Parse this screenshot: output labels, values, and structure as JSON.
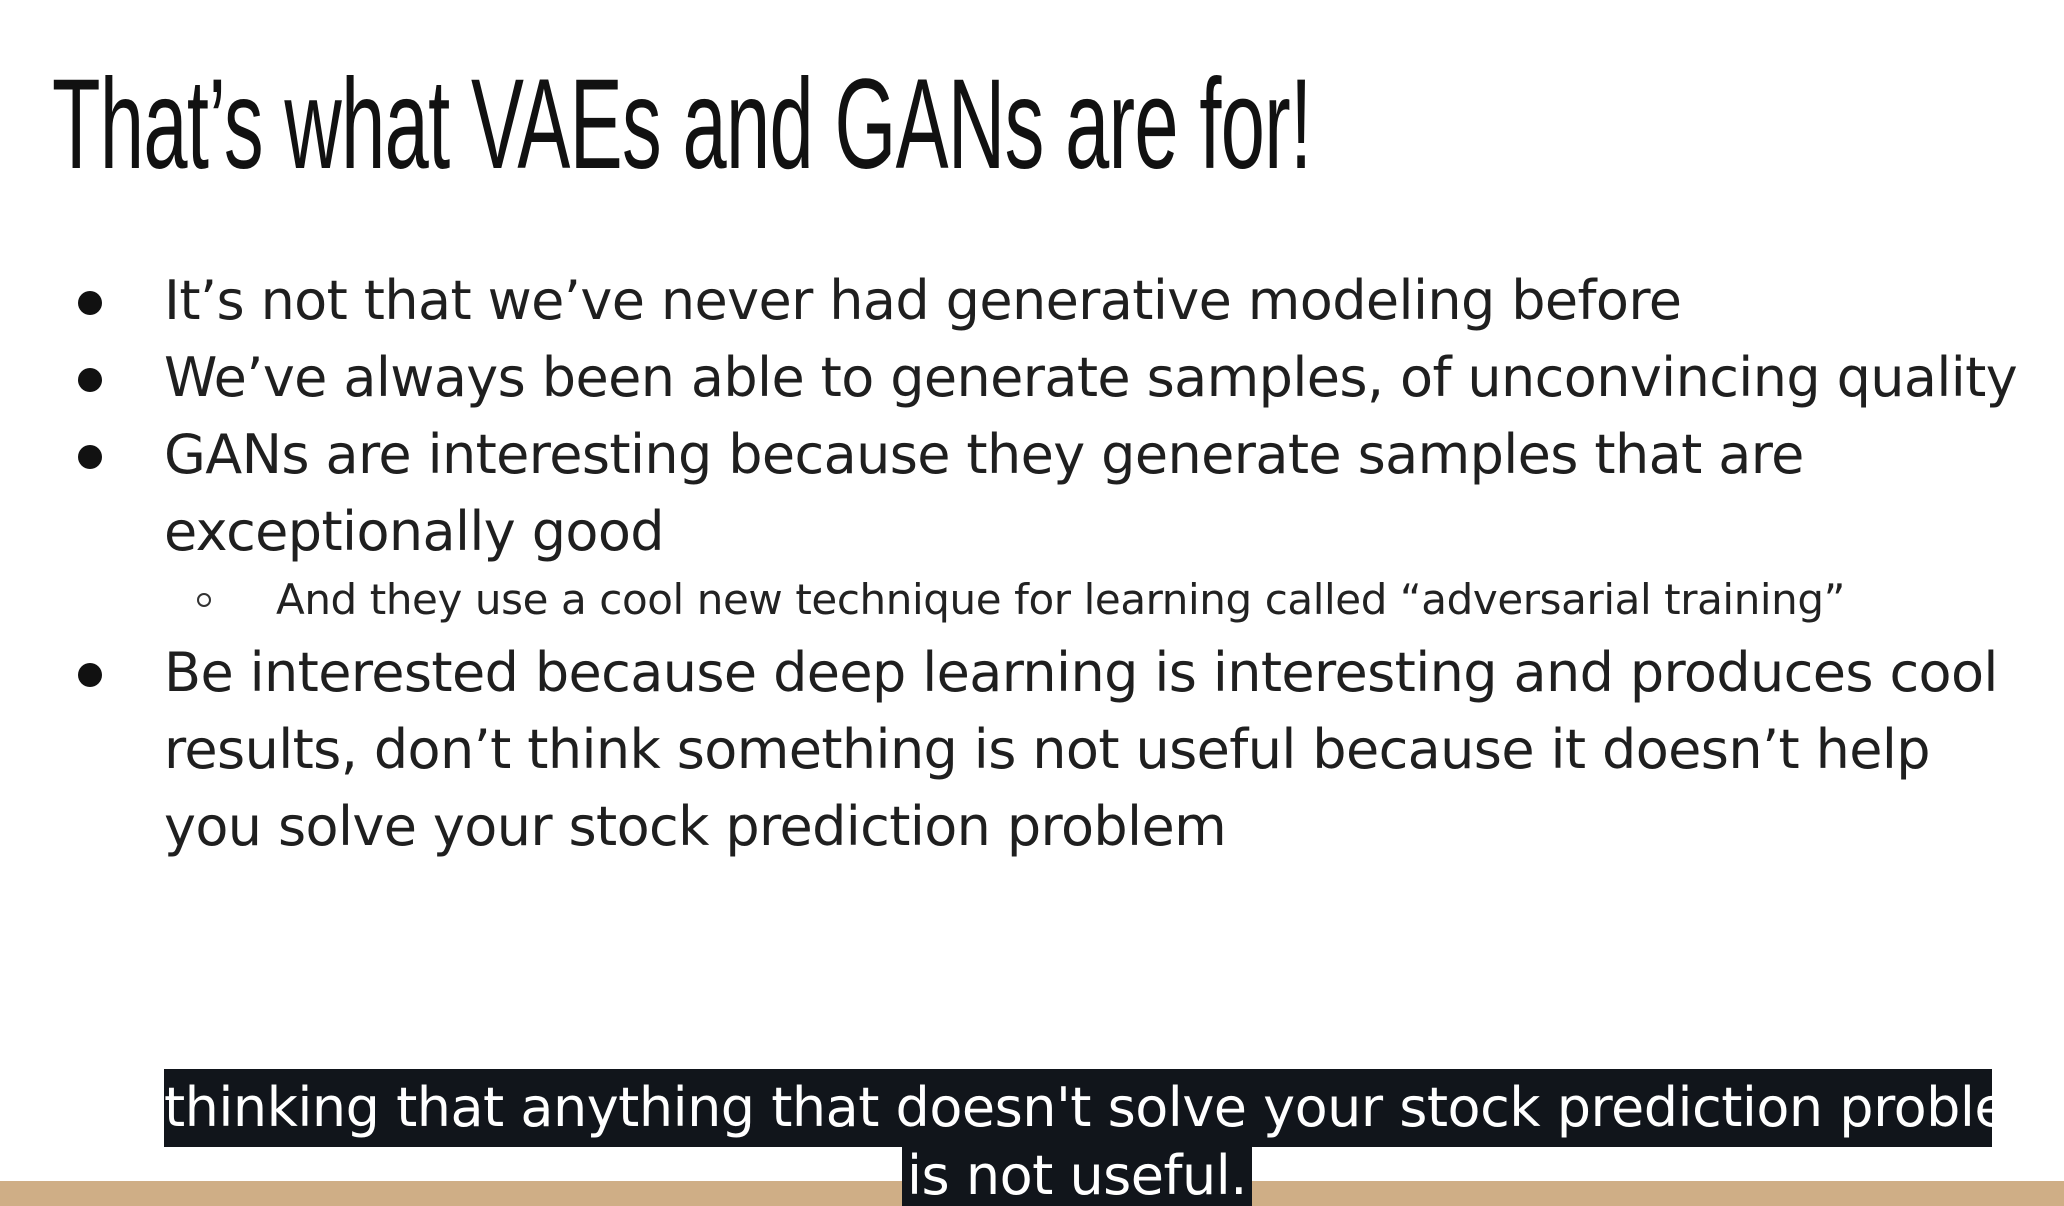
{
  "slide": {
    "title": "That’s what VAEs and GANs are for!",
    "bullets": [
      "It’s not that we’ve never had generative modeling before",
      "We’ve always been able to generate samples, of unconvincing quality",
      "GANs are interesting because they generate samples that are exceptionally good",
      "Be interested because deep learning is interesting and produces cool results, don’t think something is not useful because it doesn’t help you solve your stock prediction problem"
    ],
    "sub_bullet": "And they use a cool new technique for learning called “adversarial training”"
  },
  "caption": {
    "line1": "thinking that anything that doesn't solve your stock prediction problem",
    "line2": "is not useful."
  },
  "colors": {
    "bottom_bar": "#cfae86",
    "caption_background": "#11151b",
    "caption_text": "#ffffff"
  }
}
